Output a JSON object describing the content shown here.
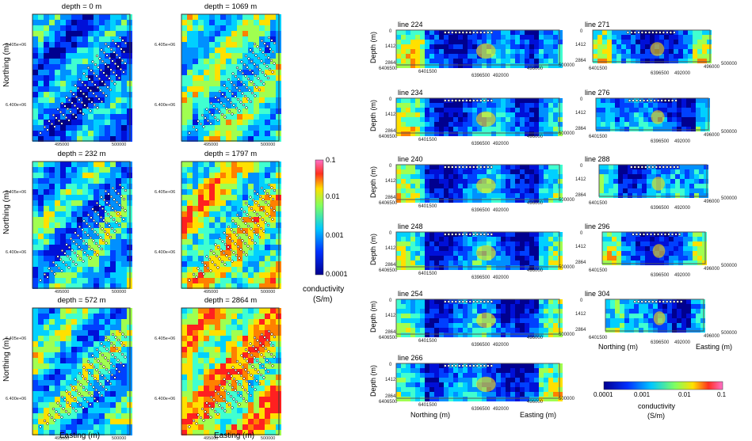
{
  "left_maps": {
    "titles": [
      "depth = 0 m",
      "depth = 1069 m",
      "depth = 232 m",
      "depth = 1797 m",
      "depth = 572 m",
      "depth = 2864 m"
    ],
    "northing_ticks": [
      "6.405e+06",
      "6.400e+06"
    ],
    "easting_ticks": [
      "495000",
      "500000"
    ],
    "ylabel": "Northing (m)",
    "xlabel": "Easting (m)"
  },
  "colorbar_vertical": {
    "ticks": [
      "0.1",
      "0.01",
      "0.001",
      "0.0001"
    ],
    "label_line1": "conductivity",
    "label_line2": "(S/m)"
  },
  "sections": {
    "titles": [
      "line 224",
      "line 271",
      "line 234",
      "line 276",
      "line 240",
      "line 288",
      "line 248",
      "line 296",
      "line 254",
      "line 304",
      "line 266"
    ],
    "depth_ticks": [
      "0",
      "1412",
      "2864"
    ],
    "ylabel": "Depth (m)",
    "northing_ticks": [
      "6406500",
      "6401500",
      "6396500"
    ],
    "easting_ticks": [
      "492000",
      "496000",
      "500000"
    ],
    "right_northing_ticks": [
      "6401500",
      "6396500"
    ],
    "right_easting_ticks": [
      "492000",
      "496000",
      "500000"
    ],
    "xlabel_north": "Northing (m)",
    "xlabel_east": "Easting (m)"
  },
  "colorbar_horizontal": {
    "ticks": [
      "0.0001",
      "0.001",
      "0.01",
      "0.1"
    ],
    "label_line1": "conductivity",
    "label_line2": "(S/m)"
  },
  "chart_data": {
    "type": "heatmap",
    "colorbar_range": [
      0.0001,
      0.1
    ],
    "colorbar_scale": "log",
    "depth_slices_m": [
      0,
      1069,
      232,
      1797,
      572,
      2864
    ],
    "section_lines": [
      224,
      271,
      234,
      276,
      240,
      288,
      248,
      296,
      254,
      304,
      266
    ],
    "colors": {
      "low": "#0000aa",
      "mid": "#00c8ff",
      "mid2": "#b0ff40",
      "high": "#ff2020",
      "max": "#ff60c0"
    }
  }
}
